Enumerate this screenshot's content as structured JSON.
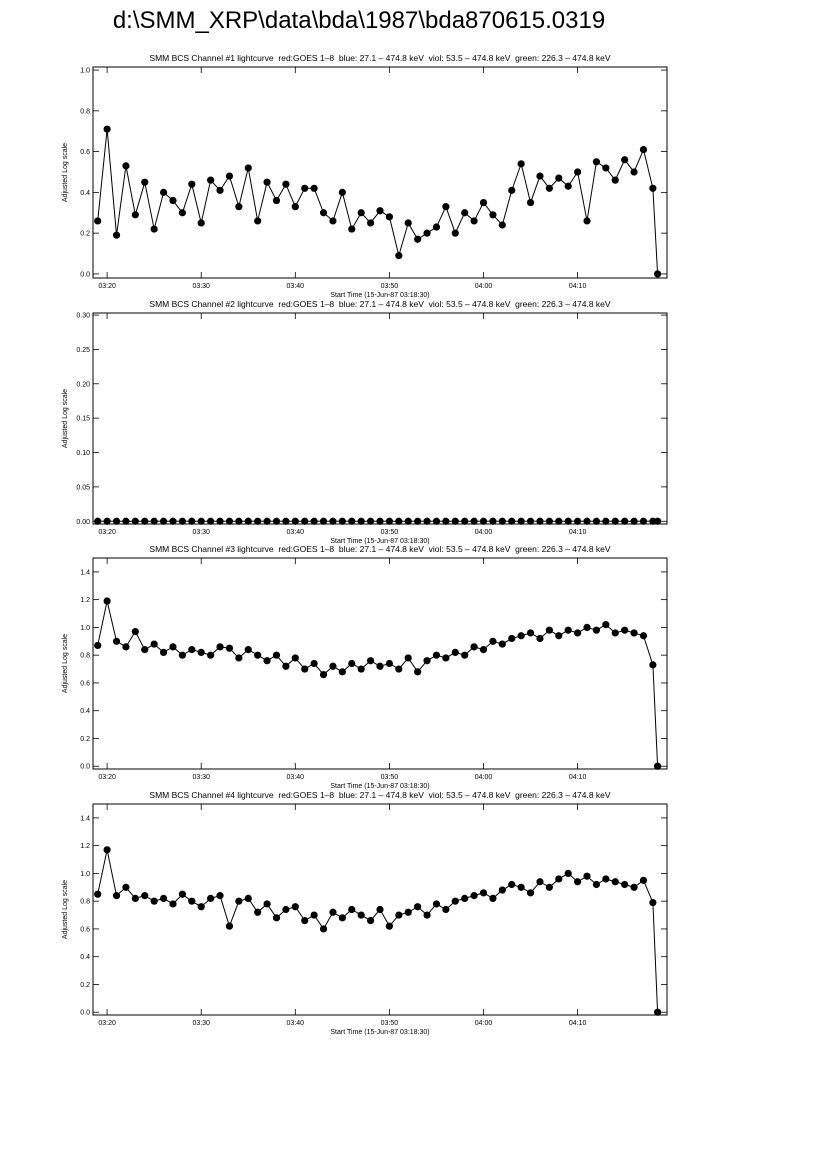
{
  "title": "d:\\SMM_XRP\\data\\bda\\1987\\bda870615.0319",
  "chart_data": [
    {
      "type": "line",
      "title": "SMM BCS Channel #1 lightcurve  red:GOES 1–8  blue: 27.1 – 474.8 keV  viol: 53.5 – 474.8 keV  green: 226.3 – 474.8 keV",
      "x_label": "Start Time (15-Jun-87 03:18:30)",
      "y_label": "Adjusted Log scale",
      "x": [
        "03:19",
        "03:20",
        "03:21",
        "03:22",
        "03:23",
        "03:24",
        "03:25",
        "03:26",
        "03:27",
        "03:28",
        "03:29",
        "03:30",
        "03:31",
        "03:32",
        "03:33",
        "03:34",
        "03:35",
        "03:36",
        "03:37",
        "03:38",
        "03:39",
        "03:40",
        "03:41",
        "03:42",
        "03:43",
        "03:44",
        "03:45",
        "03:46",
        "03:47",
        "03:48",
        "03:49",
        "03:50",
        "03:51",
        "03:52",
        "03:53",
        "03:54",
        "03:55",
        "03:56",
        "03:57",
        "03:58",
        "03:59",
        "04:00",
        "04:01",
        "04:02",
        "04:03",
        "04:04",
        "04:05",
        "04:06",
        "04:07",
        "04:08",
        "04:09",
        "04:10",
        "04:11",
        "04:12",
        "04:13",
        "04:14",
        "04:15",
        "04:16",
        "04:17",
        "04:18",
        "04:18:30"
      ],
      "values": [
        0.26,
        0.71,
        0.19,
        0.53,
        0.29,
        0.45,
        0.22,
        0.4,
        0.36,
        0.3,
        0.44,
        0.25,
        0.46,
        0.41,
        0.48,
        0.33,
        0.52,
        0.26,
        0.45,
        0.36,
        0.44,
        0.33,
        0.42,
        0.42,
        0.3,
        0.26,
        0.4,
        0.22,
        0.3,
        0.25,
        0.31,
        0.28,
        0.09,
        0.25,
        0.17,
        0.2,
        0.23,
        0.33,
        0.2,
        0.3,
        0.26,
        0.35,
        0.29,
        0.24,
        0.41,
        0.54,
        0.35,
        0.48,
        0.42,
        0.47,
        0.43,
        0.5,
        0.26,
        0.55,
        0.52,
        0.46,
        0.56,
        0.5,
        0.61,
        0.42,
        0
      ],
      "color": "#000000",
      "xlim": [
        "03:18:30",
        "04:19:30"
      ],
      "xticks": [
        "03:20",
        "03:30",
        "03:40",
        "03:50",
        "04:00",
        "04:10"
      ],
      "ylim": [
        -0.02,
        1.015
      ],
      "yticks": [
        {
          "value": 0,
          "label": "0.0"
        },
        0.2,
        0.4,
        0.6,
        0.8,
        {
          "value": 1,
          "label": "1.0"
        }
      ]
    },
    {
      "type": "line",
      "title": "SMM BCS Channel #2 lightcurve  red:GOES 1–8  blue: 27.1 – 474.8 keV  viol: 53.5 – 474.8 keV  green: 226.3 – 474.8 keV",
      "x_label": "Start Time (15-Jun-87 03:18:30)",
      "y_label": "Adjusted Log scale",
      "x": [
        "03:19",
        "03:20",
        "03:21",
        "03:22",
        "03:23",
        "03:24",
        "03:25",
        "03:26",
        "03:27",
        "03:28",
        "03:29",
        "03:30",
        "03:31",
        "03:32",
        "03:33",
        "03:34",
        "03:35",
        "03:36",
        "03:37",
        "03:38",
        "03:39",
        "03:40",
        "03:41",
        "03:42",
        "03:43",
        "03:44",
        "03:45",
        "03:46",
        "03:47",
        "03:48",
        "03:49",
        "03:50",
        "03:51",
        "03:52",
        "03:53",
        "03:54",
        "03:55",
        "03:56",
        "03:57",
        "03:58",
        "03:59",
        "04:00",
        "04:01",
        "04:02",
        "04:03",
        "04:04",
        "04:05",
        "04:06",
        "04:07",
        "04:08",
        "04:09",
        "04:10",
        "04:11",
        "04:12",
        "04:13",
        "04:14",
        "04:15",
        "04:16",
        "04:17",
        "04:18",
        "04:18:30"
      ],
      "values": [
        0,
        0,
        0,
        0,
        0,
        0,
        0,
        0,
        0,
        0,
        0,
        0,
        0,
        0,
        0,
        0,
        0,
        0,
        0,
        0,
        0,
        0,
        0,
        0,
        0,
        0,
        0,
        0,
        0,
        0,
        0,
        0,
        0,
        0,
        0,
        0,
        0,
        0,
        0,
        0,
        0,
        0,
        0,
        0,
        0,
        0,
        0,
        0,
        0,
        0,
        0,
        0,
        0,
        0,
        0,
        0,
        0,
        0,
        0,
        0,
        0
      ],
      "color": "#000000",
      "xlim": [
        "03:18:30",
        "04:19:30"
      ],
      "xticks": [
        "03:20",
        "03:30",
        "03:40",
        "03:50",
        "04:00",
        "04:10"
      ],
      "ylim": [
        -0.004,
        0.303
      ],
      "yticks": [
        {
          "value": 0,
          "label": "0.00"
        },
        0.05,
        {
          "value": 0.1,
          "label": "0.10"
        },
        0.15,
        {
          "value": 0.2,
          "label": "0.20"
        },
        0.25,
        {
          "value": 0.3,
          "label": "0.30"
        }
      ]
    },
    {
      "type": "line",
      "title": "SMM BCS Channel #3 lightcurve  red:GOES 1–8  blue: 27.1 – 474.8 keV  viol: 53.5 – 474.8 keV  green: 226.3 – 474.8 keV",
      "x_label": "Start Time (15-Jun-87 03:18:30)",
      "y_label": "Adjusted Log scale",
      "x": [
        "03:19",
        "03:20",
        "03:21",
        "03:22",
        "03:23",
        "03:24",
        "03:25",
        "03:26",
        "03:27",
        "03:28",
        "03:29",
        "03:30",
        "03:31",
        "03:32",
        "03:33",
        "03:34",
        "03:35",
        "03:36",
        "03:37",
        "03:38",
        "03:39",
        "03:40",
        "03:41",
        "03:42",
        "03:43",
        "03:44",
        "03:45",
        "03:46",
        "03:47",
        "03:48",
        "03:49",
        "03:50",
        "03:51",
        "03:52",
        "03:53",
        "03:54",
        "03:55",
        "03:56",
        "03:57",
        "03:58",
        "03:59",
        "04:00",
        "04:01",
        "04:02",
        "04:03",
        "04:04",
        "04:05",
        "04:06",
        "04:07",
        "04:08",
        "04:09",
        "04:10",
        "04:11",
        "04:12",
        "04:13",
        "04:14",
        "04:15",
        "04:16",
        "04:17",
        "04:18",
        "04:18:30"
      ],
      "values": [
        0.87,
        1.19,
        0.9,
        0.86,
        0.97,
        0.84,
        0.88,
        0.82,
        0.86,
        0.8,
        0.84,
        0.82,
        0.8,
        0.86,
        0.85,
        0.78,
        0.84,
        0.8,
        0.76,
        0.8,
        0.72,
        0.78,
        0.7,
        0.74,
        0.66,
        0.72,
        0.68,
        0.74,
        0.7,
        0.76,
        0.72,
        0.74,
        0.7,
        0.78,
        0.68,
        0.76,
        0.8,
        0.78,
        0.82,
        0.8,
        0.86,
        0.84,
        0.9,
        0.88,
        0.92,
        0.94,
        0.96,
        0.92,
        0.98,
        0.94,
        0.98,
        0.96,
        1.0,
        0.98,
        1.02,
        0.96,
        0.98,
        0.96,
        0.94,
        0.73,
        0
      ],
      "color": "#000000",
      "xlim": [
        "03:18:30",
        "04:19:30"
      ],
      "xticks": [
        "03:20",
        "03:30",
        "03:40",
        "03:50",
        "04:00",
        "04:10"
      ],
      "ylim": [
        -0.02,
        1.5
      ],
      "yticks": [
        {
          "value": 0,
          "label": "0.0"
        },
        0.2,
        0.4,
        0.6,
        0.8,
        {
          "value": 1,
          "label": "1.0"
        },
        1.2,
        1.4
      ]
    },
    {
      "type": "line",
      "title": "SMM BCS Channel #4 lightcurve  red:GOES 1–8  blue: 27.1 – 474.8 keV  viol: 53.5 – 474.8 keV  green: 226.3 – 474.8 keV",
      "x_label": "Start Time (15-Jun-87 03:18:30)",
      "y_label": "Adjusted Log scale",
      "x": [
        "03:19",
        "03:20",
        "03:21",
        "03:22",
        "03:23",
        "03:24",
        "03:25",
        "03:26",
        "03:27",
        "03:28",
        "03:29",
        "03:30",
        "03:31",
        "03:32",
        "03:33",
        "03:34",
        "03:35",
        "03:36",
        "03:37",
        "03:38",
        "03:39",
        "03:40",
        "03:41",
        "03:42",
        "03:43",
        "03:44",
        "03:45",
        "03:46",
        "03:47",
        "03:48",
        "03:49",
        "03:50",
        "03:51",
        "03:52",
        "03:53",
        "03:54",
        "03:55",
        "03:56",
        "03:57",
        "03:58",
        "03:59",
        "04:00",
        "04:01",
        "04:02",
        "04:03",
        "04:04",
        "04:05",
        "04:06",
        "04:07",
        "04:08",
        "04:09",
        "04:10",
        "04:11",
        "04:12",
        "04:13",
        "04:14",
        "04:15",
        "04:16",
        "04:17",
        "04:18",
        "04:18:30"
      ],
      "values": [
        0.85,
        1.17,
        0.84,
        0.9,
        0.82,
        0.84,
        0.8,
        0.82,
        0.78,
        0.85,
        0.8,
        0.76,
        0.82,
        0.84,
        0.62,
        0.8,
        0.82,
        0.72,
        0.78,
        0.68,
        0.74,
        0.76,
        0.66,
        0.7,
        0.6,
        0.72,
        0.68,
        0.74,
        0.7,
        0.66,
        0.74,
        0.62,
        0.7,
        0.72,
        0.76,
        0.7,
        0.78,
        0.74,
        0.8,
        0.82,
        0.84,
        0.86,
        0.82,
        0.88,
        0.92,
        0.9,
        0.86,
        0.94,
        0.9,
        0.96,
        1.0,
        0.94,
        0.98,
        0.92,
        0.96,
        0.94,
        0.92,
        0.9,
        0.95,
        0.79,
        0
      ],
      "color": "#000000",
      "xlim": [
        "03:18:30",
        "04:19:30"
      ],
      "xticks": [
        "03:20",
        "03:30",
        "03:40",
        "03:50",
        "04:00",
        "04:10"
      ],
      "ylim": [
        -0.02,
        1.5
      ],
      "yticks": [
        {
          "value": 0,
          "label": "0.0"
        },
        0.2,
        0.4,
        0.6,
        0.8,
        {
          "value": 1,
          "label": "1.0"
        },
        1.2,
        1.4
      ]
    }
  ]
}
